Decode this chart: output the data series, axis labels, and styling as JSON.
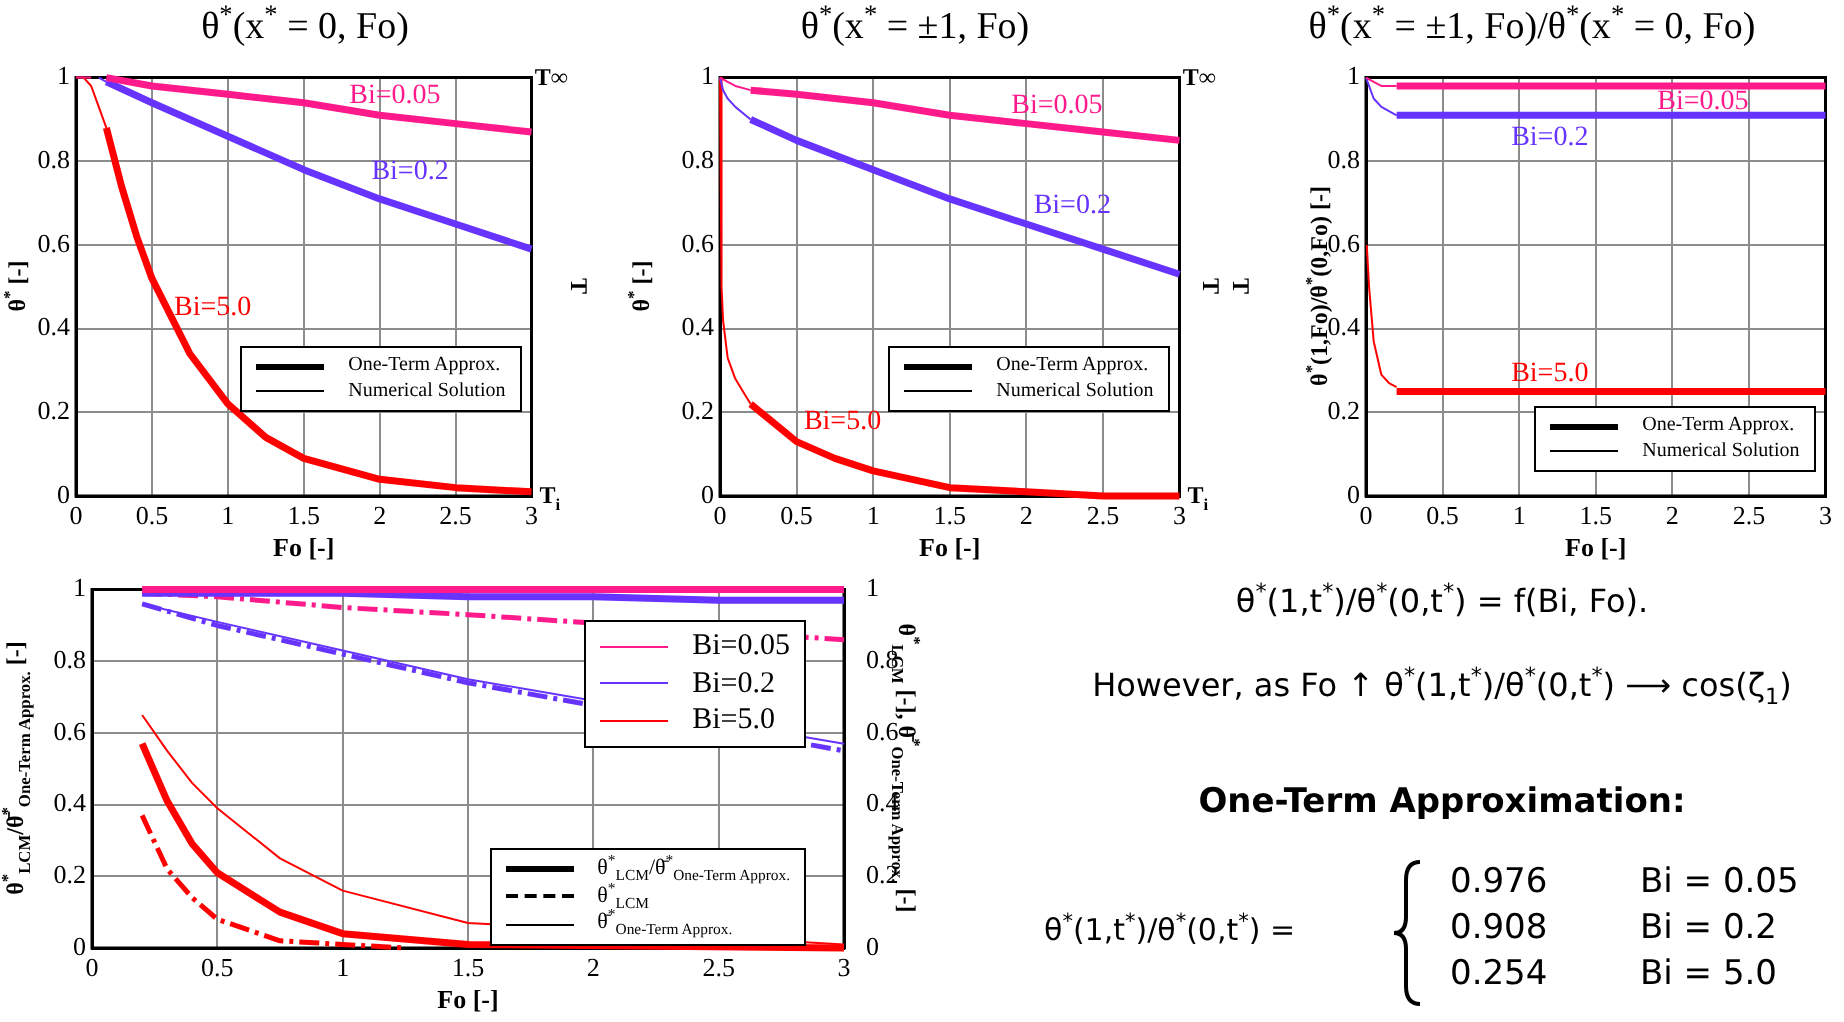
{
  "chart_data": [
    {
      "type": "line",
      "title": "θ$^{*}$(x$^{*}$ = 0, Fo)",
      "xlabel": "Fo [-]",
      "ylabel": "θ$^{*}$ [-]",
      "xlim": [
        0,
        3
      ],
      "xticks": [
        0,
        0.5,
        1,
        1.5,
        2,
        2.5,
        3
      ],
      "ylim": [
        0,
        1
      ],
      "yticks": [
        0,
        0.2,
        0.4,
        0.6,
        0.8,
        1
      ],
      "grid": true,
      "legend": "bottom right",
      "series": [
        {
          "color": "#ff1a8c",
          "x": [
            0.2,
            0.5,
            1,
            1.5,
            2,
            2.5,
            3
          ],
          "values": [
            1.0,
            0.98,
            0.96,
            0.94,
            0.91,
            0.89,
            0.87
          ]
        },
        {
          "color": "#6633ff",
          "x": [
            0.2,
            0.5,
            1,
            1.5,
            2,
            2.5,
            3
          ],
          "values": [
            0.99,
            0.94,
            0.86,
            0.78,
            0.71,
            0.65,
            0.59
          ]
        },
        {
          "color": "#ff0000",
          "x": [
            0.2,
            0.3,
            0.4,
            0.5,
            0.75,
            1,
            1.25,
            1.5,
            2,
            2.5,
            3
          ],
          "values": [
            0.88,
            0.74,
            0.62,
            0.52,
            0.34,
            0.22,
            0.14,
            0.09,
            0.04,
            0.02,
            0.01
          ]
        },
        {
          "color": "#ff1a8c",
          "x": [
            0,
            0.1
          ],
          "values": [
            1,
            1
          ]
        },
        {
          "color": "#6633ff",
          "x": [
            0.15,
            0.2
          ],
          "values": [
            1,
            0.99
          ]
        },
        {
          "color": "#ff0000",
          "x": [
            0,
            0.05,
            0.1,
            0.15,
            0.2
          ],
          "values": [
            1,
            1,
            0.98,
            0.93,
            0.88
          ]
        },
        {
          "name": "One-Term Approx.",
          "color": "#000000",
          "line_style": "solid"
        },
        {
          "name": "Numerical Solution",
          "color": "#000000",
          "line_style": "solid"
        }
      ],
      "annotations": [
        "Bi=0.05",
        "Bi=0.2",
        "Bi=5.0",
        "T∞",
        "T",
        "T$_{i}$"
      ]
    },
    {
      "type": "line",
      "title": "θ$^{*}$(x$^{*}$ = ±1, Fo)",
      "xlabel": "Fo [-]",
      "ylabel": "θ$^{*}$ [-]",
      "xlim": [
        0,
        3
      ],
      "xticks": [
        0,
        0.5,
        1,
        1.5,
        2,
        2.5,
        3
      ],
      "ylim": [
        0,
        1
      ],
      "yticks": [
        0,
        0.2,
        0.4,
        0.6,
        0.8,
        1
      ],
      "grid": true,
      "legend": "bottom right",
      "series": [
        {
          "color": "#ff1a8c",
          "x": [
            0.2,
            0.5,
            1,
            1.5,
            2,
            2.5,
            3
          ],
          "values": [
            0.97,
            0.96,
            0.94,
            0.91,
            0.89,
            0.87,
            0.85
          ]
        },
        {
          "color": "#6633ff",
          "x": [
            0.2,
            0.5,
            1,
            1.5,
            2,
            2.5,
            3
          ],
          "values": [
            0.9,
            0.85,
            0.78,
            0.71,
            0.65,
            0.59,
            0.53
          ]
        },
        {
          "color": "#ff0000",
          "x": [
            0.2,
            0.3,
            0.5,
            0.75,
            1,
            1.5,
            2,
            2.5,
            3
          ],
          "values": [
            0.22,
            0.19,
            0.13,
            0.09,
            0.06,
            0.02,
            0.01,
            0,
            0
          ]
        },
        {
          "color": "#ff1a8c",
          "x": [
            0,
            0.05,
            0.1,
            0.2
          ],
          "values": [
            1,
            0.99,
            0.98,
            0.97
          ]
        },
        {
          "color": "#6633ff",
          "x": [
            0,
            0.02,
            0.05,
            0.1,
            0.2
          ],
          "values": [
            1,
            0.97,
            0.95,
            0.93,
            0.9
          ]
        },
        {
          "color": "#ff0000",
          "x": [
            0,
            0.01,
            0.02,
            0.05,
            0.1,
            0.15,
            0.2
          ],
          "values": [
            1,
            0.5,
            0.42,
            0.33,
            0.28,
            0.25,
            0.22
          ]
        },
        {
          "name": "One-Term Approx.",
          "color": "#000000",
          "line_style": "solid"
        },
        {
          "name": "Numerical Solution",
          "color": "#000000",
          "line_style": "solid"
        }
      ],
      "annotations": [
        "Bi=0.05",
        "Bi=0.2",
        "Bi=5.0",
        "T∞",
        "T",
        "T$_{i}$"
      ]
    },
    {
      "type": "line",
      "title": "θ$^{*}$(x$^{*}$ = ±1, Fo)/θ$^{*}$(x$^{*}$ = 0, Fo)",
      "xlabel": "Fo [-]",
      "ylabel": "θ$^{*}$(1,Fo)/θ$^{*}$(0,Fo)  [-]",
      "xlim": [
        0,
        3
      ],
      "xticks": [
        0,
        0.5,
        1,
        1.5,
        2,
        2.5,
        3
      ],
      "ylim": [
        0,
        1
      ],
      "yticks": [
        0,
        0.2,
        0.4,
        0.6,
        0.8,
        1
      ],
      "grid": true,
      "legend": "bottom right",
      "series": [
        {
          "color": "#ff1a8c",
          "x": [
            0.2,
            3
          ],
          "values": [
            0.98,
            0.98
          ]
        },
        {
          "color": "#6633ff",
          "x": [
            0.2,
            3
          ],
          "values": [
            0.91,
            0.91
          ]
        },
        {
          "color": "#ff0000",
          "x": [
            0.2,
            3
          ],
          "values": [
            0.25,
            0.25
          ]
        },
        {
          "color": "#ff1a8c",
          "x": [
            0,
            0.05,
            0.1,
            0.2
          ],
          "values": [
            1,
            0.99,
            0.98,
            0.98
          ]
        },
        {
          "color": "#6633ff",
          "x": [
            0,
            0.05,
            0.1,
            0.2
          ],
          "values": [
            1,
            0.95,
            0.93,
            0.91
          ]
        },
        {
          "color": "#ff0000",
          "x": [
            0.005,
            0.02,
            0.05,
            0.1,
            0.15,
            0.2
          ],
          "values": [
            0.6,
            0.5,
            0.37,
            0.29,
            0.27,
            0.26
          ]
        },
        {
          "name": "One-Term Approx.",
          "color": "#000000",
          "line_style": "solid"
        },
        {
          "name": "Numerical Solution",
          "color": "#000000",
          "line_style": "solid"
        }
      ],
      "annotations": [
        "Bi=0.05",
        "Bi=0.2",
        "Bi=5.0",
        "T"
      ]
    },
    {
      "type": "line",
      "xlabel": "Fo [-]",
      "ylabel": "θ$^{*}$$_{LCM}$/θ̄$^{*}$$_{One-Term Approx.}$ [-]",
      "y2label": "θ$^{*}$$_{LCM}$ [-], θ̄$^{*}$$_{One-Term Approx.}$ [-]",
      "xlim": [
        0,
        3
      ],
      "xticks": [
        0,
        0.5,
        1,
        1.5,
        2,
        2.5,
        3
      ],
      "ylim": [
        0,
        1
      ],
      "yticks": [
        0,
        0.2,
        0.4,
        0.6,
        0.8,
        1
      ],
      "y2lim": [
        0,
        1
      ],
      "y2ticks": [
        0,
        0.2,
        0.4,
        0.6,
        0.8,
        1
      ],
      "grid": true,
      "legend": "right",
      "series": [
        {
          "color": "#ff1a8c",
          "x": [
            0.2,
            3
          ],
          "values": [
            1,
            1
          ]
        },
        {
          "color": "#6633ff",
          "x": [
            0.2,
            0.5,
            1,
            1.5,
            2,
            2.5,
            3
          ],
          "values": [
            0.99,
            0.99,
            0.99,
            0.98,
            0.98,
            0.97,
            0.97
          ]
        },
        {
          "color": "#ff0000",
          "x": [
            0.2,
            0.3,
            0.4,
            0.5,
            0.75,
            1,
            1.5,
            3
          ],
          "values": [
            0.57,
            0.41,
            0.29,
            0.21,
            0.1,
            0.04,
            0.01,
            0
          ]
        },
        {
          "color": "#ff1a8c",
          "line_style": "dashed",
          "x": [
            0.2,
            0.5,
            1,
            1.5,
            3
          ],
          "values": [
            0.99,
            0.98,
            0.95,
            0.93,
            0.86
          ]
        },
        {
          "color": "#6633ff",
          "line_style": "dashed",
          "x": [
            0.2,
            0.5,
            1,
            1.5,
            3
          ],
          "values": [
            0.96,
            0.9,
            0.82,
            0.74,
            0.55
          ]
        },
        {
          "color": "#ff0000",
          "line_style": "dashed",
          "x": [
            0.2,
            0.3,
            0.4,
            0.5,
            0.75,
            1,
            1.25
          ],
          "values": [
            0.37,
            0.22,
            0.14,
            0.08,
            0.02,
            0.01,
            0
          ]
        },
        {
          "color": "#6633ff",
          "x": [
            0.2,
            0.5,
            1,
            1.5,
            3
          ],
          "values": [
            0.96,
            0.91,
            0.83,
            0.75,
            0.57
          ]
        },
        {
          "color": "#ff0000",
          "x": [
            0.2,
            0.3,
            0.4,
            0.5,
            0.75,
            1,
            1.5,
            3
          ],
          "values": [
            0.65,
            0.55,
            0.46,
            0.39,
            0.25,
            0.16,
            0.07,
            0.01
          ]
        },
        {
          "name": "Bi=0.05",
          "color": "#ff1a8c",
          "line_style": "solid"
        },
        {
          "name": "Bi=0.2",
          "color": "#6633ff",
          "line_style": "solid"
        },
        {
          "name": "Bi=5.0",
          "color": "#ff0000",
          "line_style": "solid"
        },
        {
          "name": "θ$^{*}$$_{LCM}$/θ̄$^{*}$$_{One-Term Approx.}$",
          "color": "#000000",
          "line_style": "solid"
        },
        {
          "name": "θ$^{*}$$_{LCM}$",
          "color": "#000000",
          "line_style": "dashed"
        },
        {
          "name": "θ̄$^{*}$$_{One-Term Approx.}$",
          "color": "#000000",
          "line_style": "solid"
        }
      ]
    },
    {
      "type": "other",
      "title": "One-Term Approximation:",
      "annotations": [
        "θ$^{*}$(1,t$^{*}$)/θ$^{*}$(0,t$^{*}$) = f(Bi, Fo).",
        "However, as Fo ↑ θ$^{*}$(1,t$^{*}$)/θ$^{*}$(0,t$^{*}$) ⟶ cos(ζ$_{1}$)",
        "θ$^{*}$(1,t$^{*}$)/θ$^{*}$(0,t$^{*}$) ="
      ],
      "categories": [
        "Bi = 0.05",
        "Bi = 0.2",
        "Bi = 5.0"
      ],
      "values": [
        0.976,
        0.908,
        0.254
      ],
      "data_labels": true
    }
  ]
}
